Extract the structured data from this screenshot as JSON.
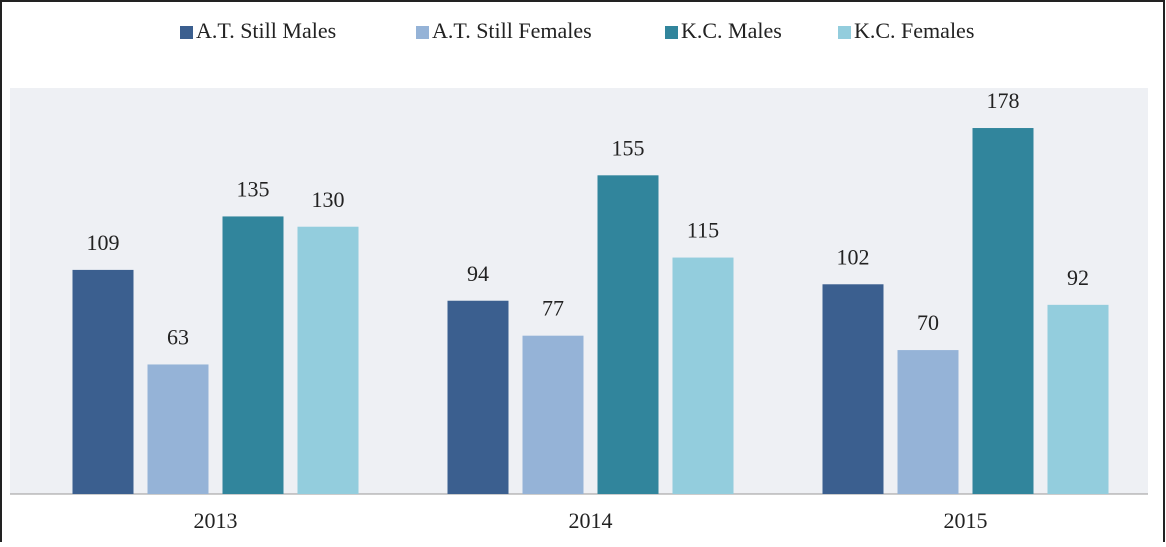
{
  "chart_data": {
    "type": "bar",
    "categories": [
      "2013",
      "2014",
      "2015"
    ],
    "series": [
      {
        "name": "A.T. Still Males",
        "color": "#3b5f8f",
        "values": [
          109,
          94,
          102
        ]
      },
      {
        "name": "A.T. Still Females",
        "color": "#95b3d7",
        "values": [
          63,
          77,
          70
        ]
      },
      {
        "name": "K.C. Males",
        "color": "#31859c",
        "values": [
          135,
          155,
          178
        ]
      },
      {
        "name": "K.C. Females",
        "color": "#93cddd",
        "values": [
          130,
          115,
          92
        ]
      }
    ],
    "legend": "top"
  }
}
